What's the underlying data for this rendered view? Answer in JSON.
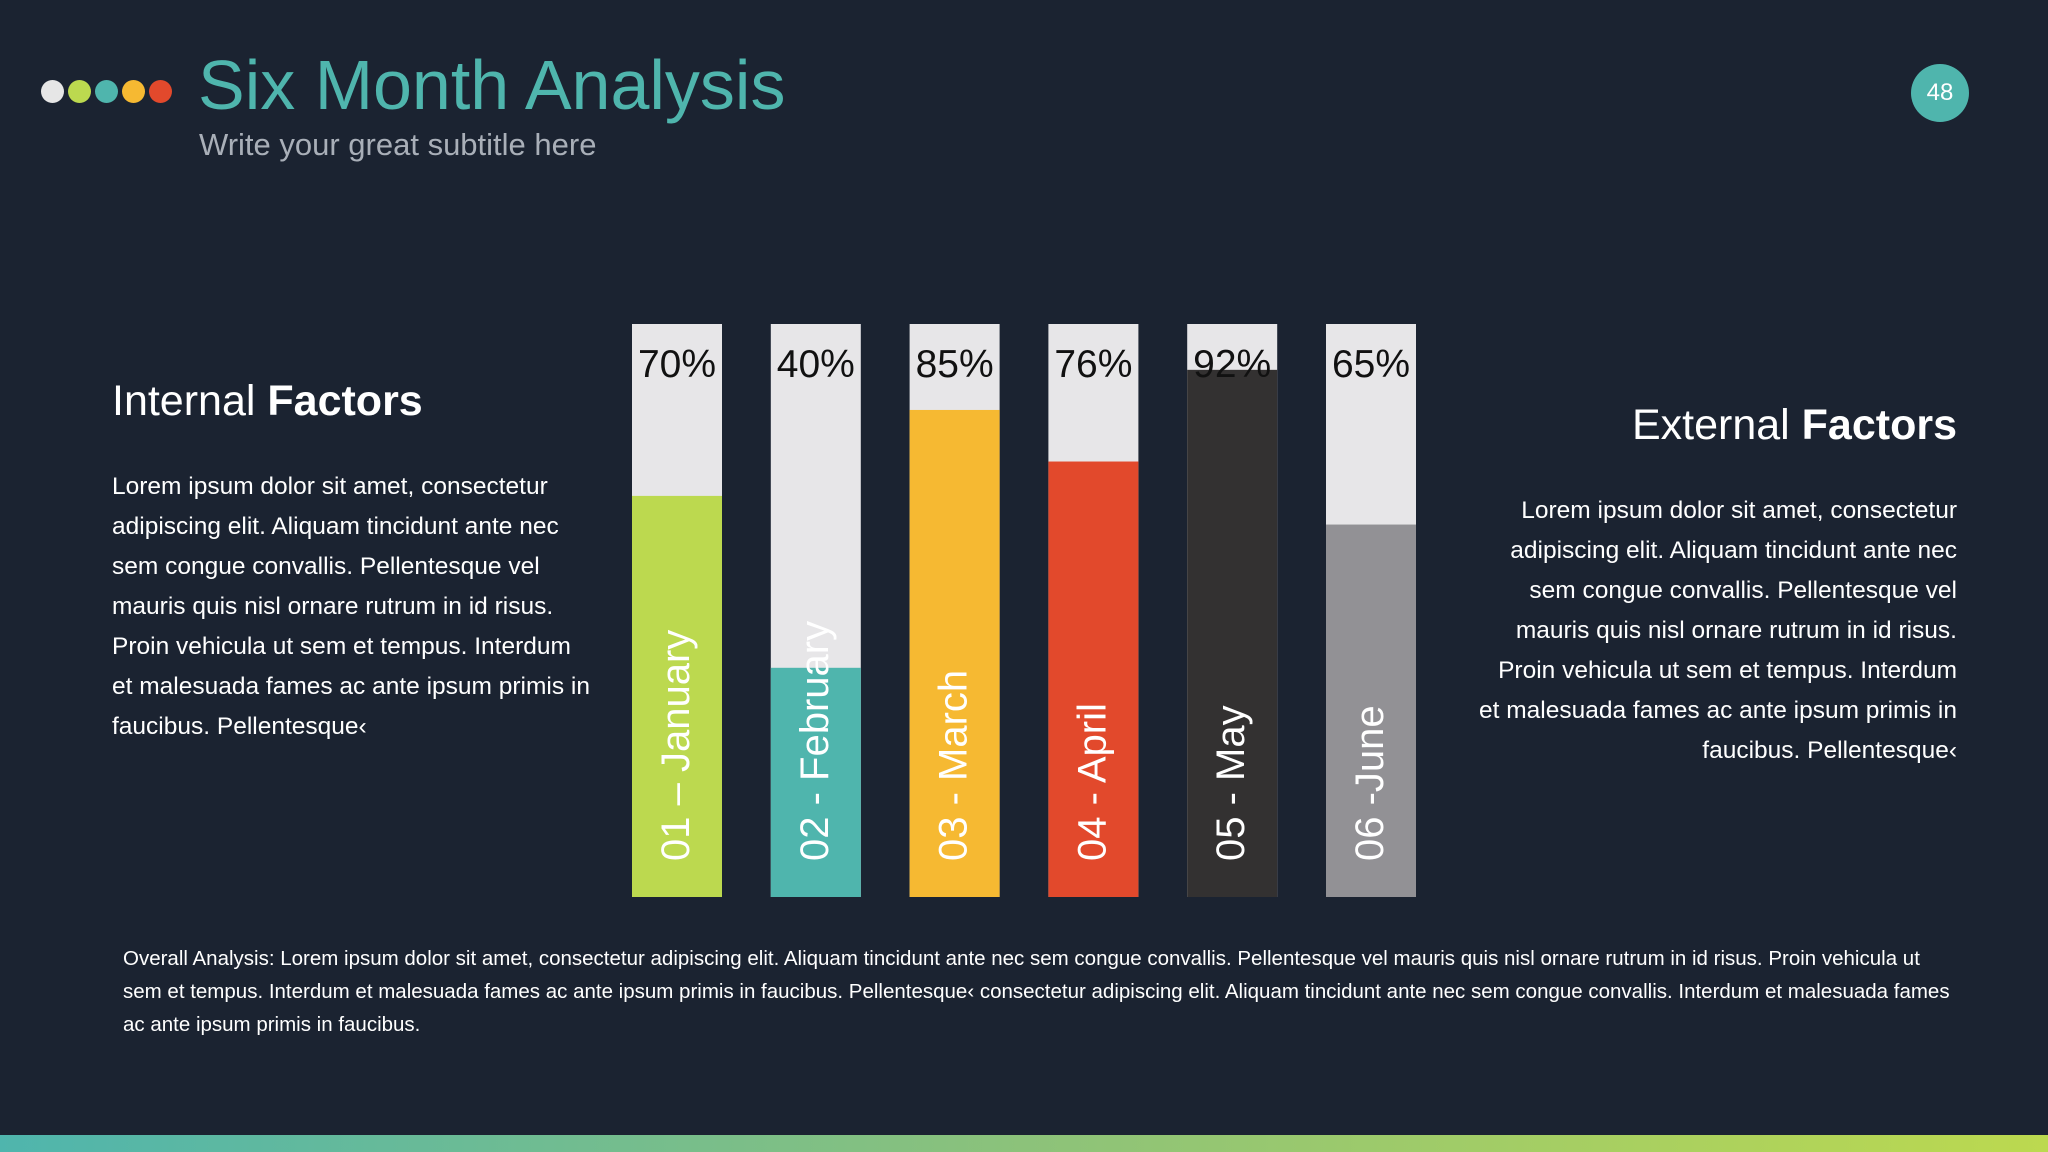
{
  "header": {
    "title": "Six Month Analysis",
    "subtitle": "Write your great subtitle here",
    "page_number": "48",
    "dot_colors": [
      "#e6e6e6",
      "#bcd94f",
      "#4fb5ad",
      "#f6b932",
      "#e2492c"
    ]
  },
  "internal": {
    "heading_normal": "Internal",
    "heading_bold": "Factors",
    "body": "Lorem ipsum dolor sit amet, consectetur adipiscing elit. Aliquam tincidunt ante nec sem congue convallis. Pellentesque vel mauris quis nisl ornare rutrum in id risus. Proin vehicula ut sem et tempus. Interdum et malesuada fames ac ante ipsum primis in faucibus. Pellentesque‹"
  },
  "external": {
    "heading_normal": "External",
    "heading_bold": "Factors",
    "body": "Lorem ipsum dolor sit amet, consectetur adipiscing elit. Aliquam tincidunt ante nec sem congue convallis. Pellentesque vel mauris quis nisl ornare rutrum in id risus. Proin vehicula ut sem et tempus. Interdum et malesuada fames ac ante ipsum primis in faucibus. Pellentesque‹"
  },
  "overall": {
    "text": "Overall Analysis: Lorem ipsum dolor sit amet, consectetur adipiscing elit. Aliquam tincidunt ante nec sem congue convallis. Pellentesque vel mauris quis nisl ornare rutrum in id risus. Proin vehicula ut sem et tempus. Interdum et malesuada fames ac ante ipsum primis in faucibus. Pellentesque‹ consectetur adipiscing elit. Aliquam tincidunt ante nec sem congue convallis. Interdum et malesuada fames ac ante ipsum primis in faucibus."
  },
  "chart_data": {
    "type": "bar",
    "categories": [
      "01 – January",
      "02 - February",
      "03 - March",
      "04 - April",
      "05 - May",
      "06 -June"
    ],
    "values": [
      70,
      40,
      85,
      76,
      92,
      65
    ],
    "value_labels": [
      "70%",
      "40%",
      "85%",
      "76%",
      "92%",
      "65%"
    ],
    "colors": [
      "#bcd94f",
      "#4fb5ad",
      "#f6b932",
      "#e2492c",
      "#333131",
      "#929195"
    ],
    "track_color": "#e7e6e8",
    "ylim": [
      0,
      100
    ],
    "orientation": "vertical",
    "legend": "none",
    "grid": false
  }
}
